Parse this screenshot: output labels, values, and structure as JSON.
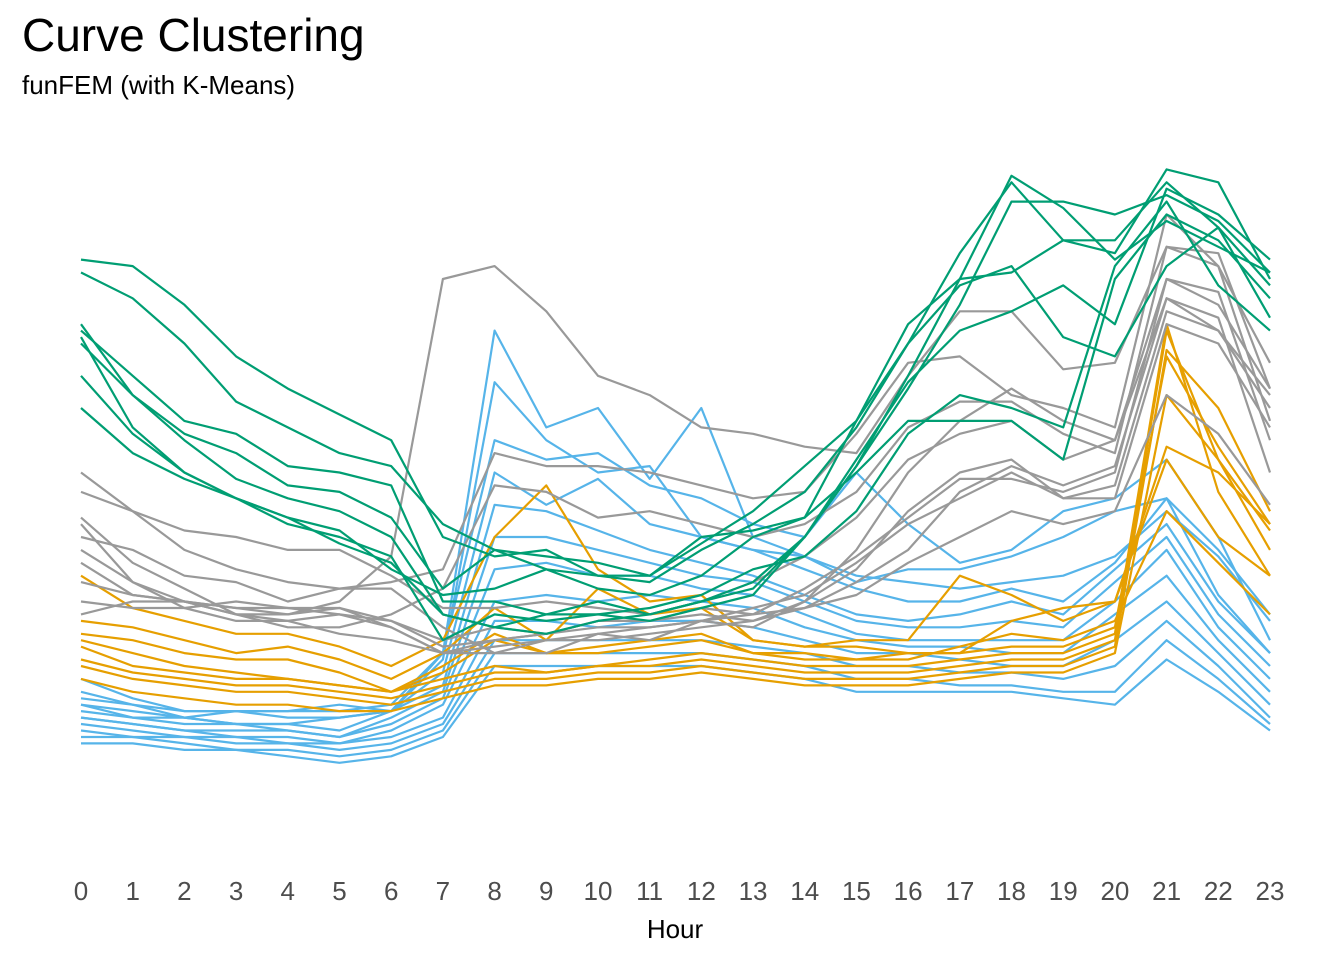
{
  "title": "Curve Clustering",
  "subtitle": "funFEM (with K-Means)",
  "chart_data": {
    "type": "line",
    "title": "Curve Clustering",
    "subtitle": "funFEM (with K-Means)",
    "xlabel": "Hour",
    "ylabel": "",
    "x": [
      0,
      1,
      2,
      3,
      4,
      5,
      6,
      7,
      8,
      9,
      10,
      11,
      12,
      13,
      14,
      15,
      16,
      17,
      18,
      19,
      20,
      21,
      22,
      23
    ],
    "ylim": [
      0,
      100
    ],
    "y_axis_shown": false,
    "grid": false,
    "legend": "none",
    "cluster_colors": {
      "A": "#009E73",
      "B": "#999999",
      "C": "#E69F00",
      "D": "#56B4E9"
    },
    "series": [
      {
        "cluster": "A",
        "values": [
          83,
          82,
          76,
          68,
          63,
          59,
          55,
          40,
          37,
          38,
          34,
          33,
          38,
          42,
          47,
          57,
          70,
          84,
          95,
          86,
          84,
          97,
          95,
          80
        ]
      },
      {
        "cluster": "A",
        "values": [
          81,
          77,
          70,
          61,
          57,
          53,
          51,
          42,
          38,
          37,
          36,
          34,
          39,
          44,
          51,
          58,
          73,
          80,
          81,
          86,
          86,
          95,
          88,
          79
        ]
      },
      {
        "cluster": "A",
        "values": [
          72,
          65,
          58,
          56,
          51,
          50,
          48,
          30,
          30,
          28,
          28,
          29,
          31,
          35,
          37,
          44,
          56,
          62,
          60,
          57,
          82,
          92,
          79,
          72
        ]
      },
      {
        "cluster": "A",
        "values": [
          70,
          62,
          56,
          53,
          48,
          47,
          43,
          32,
          38,
          35,
          32,
          31,
          34,
          40,
          43,
          50,
          58,
          58,
          58,
          52,
          80,
          90,
          86,
          77
        ]
      },
      {
        "cluster": "A",
        "values": [
          73,
          62,
          55,
          49,
          46,
          44,
          40,
          28,
          26,
          25,
          27,
          28,
          30,
          32,
          40,
          52,
          64,
          72,
          75,
          79,
          73,
          94,
          90,
          83
        ]
      },
      {
        "cluster": "A",
        "values": [
          65,
          56,
          50,
          46,
          43,
          39,
          36,
          28,
          26,
          28,
          30,
          28,
          30,
          33,
          40,
          51,
          63,
          76,
          92,
          92,
          90,
          93,
          89,
          81
        ]
      },
      {
        "cluster": "A",
        "values": [
          71,
          57,
          50,
          46,
          42,
          40,
          37,
          24,
          28,
          27,
          28,
          27,
          29,
          31,
          40,
          51,
          65,
          80,
          96,
          91,
          83,
          89,
          85,
          81
        ]
      },
      {
        "cluster": "A",
        "values": [
          60,
          53,
          49,
          46,
          43,
          41,
          35,
          31,
          32,
          35,
          34,
          34,
          40,
          41,
          43,
          58,
          70,
          79,
          82,
          71,
          68,
          82,
          88,
          74
        ]
      },
      {
        "cluster": "B",
        "values": [
          28,
          30,
          30,
          29,
          28,
          30,
          37,
          80,
          82,
          75,
          65,
          62,
          57,
          56,
          54,
          53,
          65,
          75,
          75,
          66,
          67,
          85,
          82,
          67
        ]
      },
      {
        "cluster": "B",
        "values": [
          50,
          44,
          38,
          35,
          33,
          32,
          33,
          35,
          53,
          51,
          51,
          50,
          48,
          46,
          47,
          56,
          67,
          68,
          62,
          60,
          57,
          90,
          82,
          58
        ]
      },
      {
        "cluster": "B",
        "values": [
          43,
          36,
          32,
          28,
          26,
          26,
          28,
          32,
          48,
          47,
          43,
          44,
          42,
          40,
          42,
          47,
          57,
          61,
          61,
          56,
          53,
          85,
          84,
          63
        ]
      },
      {
        "cluster": "B",
        "values": [
          47,
          44,
          41,
          40,
          38,
          38,
          34,
          29,
          29,
          30,
          29,
          28,
          30,
          33,
          37,
          43,
          52,
          56,
          58,
          52,
          55,
          80,
          78,
          55
        ]
      },
      {
        "cluster": "B",
        "values": [
          42,
          33,
          29,
          27,
          27,
          25,
          24,
          22,
          22,
          24,
          24,
          25,
          26,
          27,
          29,
          33,
          38,
          47,
          51,
          48,
          51,
          77,
          74,
          50
        ]
      },
      {
        "cluster": "B",
        "values": [
          40,
          38,
          34,
          33,
          30,
          32,
          32,
          26,
          22,
          22,
          25,
          24,
          27,
          26,
          30,
          38,
          50,
          58,
          63,
          58,
          55,
          77,
          72,
          60
        ]
      },
      {
        "cluster": "B",
        "values": [
          38,
          33,
          30,
          28,
          28,
          29,
          27,
          23,
          24,
          25,
          27,
          27,
          29,
          28,
          32,
          37,
          43,
          49,
          49,
          47,
          50,
          80,
          76,
          63
        ]
      },
      {
        "cluster": "B",
        "values": [
          36,
          31,
          30,
          28,
          27,
          28,
          27,
          24,
          26,
          25,
          27,
          27,
          28,
          27,
          30,
          35,
          44,
          50,
          52,
          46,
          48,
          75,
          72,
          62
        ]
      },
      {
        "cluster": "B",
        "values": [
          33,
          31,
          30,
          29,
          29,
          28,
          26,
          22,
          24,
          25,
          26,
          26,
          27,
          29,
          31,
          36,
          42,
          46,
          50,
          46,
          46,
          73,
          70,
          57
        ]
      },
      {
        "cluster": "B",
        "values": [
          30,
          29,
          29,
          30,
          29,
          29,
          26,
          22,
          23,
          24,
          25,
          26,
          27,
          28,
          29,
          31,
          36,
          40,
          44,
          42,
          44,
          62,
          56,
          45
        ]
      },
      {
        "cluster": "C",
        "values": [
          34,
          29,
          27,
          25,
          25,
          23,
          20,
          24,
          40,
          48,
          35,
          30,
          31,
          24,
          23,
          23,
          22,
          22,
          27,
          29,
          30,
          54,
          50,
          42
        ]
      },
      {
        "cluster": "C",
        "values": [
          27,
          26,
          24,
          22,
          23,
          21,
          18,
          22,
          29,
          24,
          32,
          28,
          29,
          24,
          23,
          24,
          24,
          34,
          31,
          27,
          30,
          52,
          40,
          34
        ]
      },
      {
        "cluster": "C",
        "values": [
          25,
          24,
          22,
          21,
          21,
          19,
          16,
          20,
          25,
          22,
          23,
          24,
          25,
          22,
          22,
          21,
          21,
          23,
          25,
          24,
          27,
          44,
          36,
          28
        ]
      },
      {
        "cluster": "C",
        "values": [
          24,
          22,
          20,
          19,
          18,
          17,
          16,
          19,
          24,
          22,
          22,
          23,
          24,
          22,
          21,
          21,
          22,
          22,
          23,
          23,
          26,
          68,
          54,
          42
        ]
      },
      {
        "cluster": "C",
        "values": [
          23,
          20,
          19,
          18,
          18,
          17,
          16,
          18,
          20,
          19,
          20,
          21,
          22,
          21,
          20,
          20,
          20,
          21,
          22,
          22,
          25,
          73,
          47,
          34
        ]
      },
      {
        "cluster": "C",
        "values": [
          21,
          19,
          18,
          17,
          17,
          16,
          15,
          17,
          19,
          19,
          20,
          20,
          21,
          20,
          19,
          19,
          19,
          20,
          21,
          21,
          24,
          72,
          52,
          38
        ]
      },
      {
        "cluster": "C",
        "values": [
          20,
          18,
          17,
          16,
          16,
          15,
          14,
          16,
          18,
          18,
          19,
          19,
          20,
          19,
          18,
          18,
          18,
          19,
          20,
          20,
          23,
          69,
          60,
          44
        ]
      },
      {
        "cluster": "C",
        "values": [
          18,
          16,
          15,
          14,
          14,
          13,
          13,
          15,
          17,
          17,
          18,
          18,
          19,
          18,
          17,
          17,
          17,
          18,
          19,
          19,
          22,
          62,
          52,
          41
        ]
      },
      {
        "cluster": "D",
        "values": [
          18,
          15,
          13,
          13,
          13,
          13,
          14,
          22,
          72,
          57,
          60,
          49,
          60,
          40,
          37,
          33,
          35,
          35,
          37,
          40,
          44,
          46,
          38,
          28
        ]
      },
      {
        "cluster": "D",
        "values": [
          16,
          14,
          12,
          13,
          12,
          12,
          13,
          21,
          64,
          55,
          50,
          51,
          40,
          38,
          37,
          34,
          33,
          32,
          33,
          34,
          37,
          44,
          37,
          27
        ]
      },
      {
        "cluster": "D",
        "values": [
          15,
          14,
          13,
          13,
          13,
          14,
          13,
          22,
          55,
          52,
          53,
          48,
          46,
          42,
          40,
          50,
          42,
          36,
          38,
          44,
          46,
          52,
          40,
          24
        ]
      },
      {
        "cluster": "D",
        "values": [
          14,
          13,
          12,
          11,
          11,
          12,
          13,
          19,
          50,
          45,
          49,
          42,
          40,
          38,
          35,
          32,
          30,
          30,
          32,
          30,
          36,
          46,
          31,
          22
        ]
      },
      {
        "cluster": "D",
        "values": [
          14,
          12,
          12,
          11,
          11,
          10,
          13,
          17,
          45,
          44,
          41,
          38,
          36,
          34,
          31,
          28,
          27,
          28,
          30,
          28,
          35,
          42,
          30,
          22
        ]
      },
      {
        "cluster": "D",
        "values": [
          13,
          12,
          11,
          11,
          10,
          9,
          12,
          16,
          40,
          40,
          38,
          36,
          34,
          33,
          30,
          27,
          26,
          26,
          27,
          26,
          33,
          40,
          28,
          20
        ]
      },
      {
        "cluster": "D",
        "values": [
          12,
          11,
          10,
          10,
          10,
          9,
          11,
          15,
          35,
          36,
          34,
          34,
          32,
          31,
          28,
          25,
          24,
          24,
          24,
          24,
          30,
          38,
          26,
          18
        ]
      },
      {
        "cluster": "D",
        "values": [
          12,
          11,
          10,
          9,
          9,
          8,
          10,
          14,
          30,
          31,
          30,
          31,
          30,
          29,
          26,
          24,
          23,
          23,
          22,
          22,
          28,
          34,
          24,
          16
        ]
      },
      {
        "cluster": "D",
        "values": [
          11,
          10,
          9,
          9,
          8,
          8,
          9,
          12,
          27,
          27,
          26,
          27,
          27,
          26,
          24,
          22,
          22,
          21,
          20,
          20,
          24,
          30,
          22,
          14
        ]
      },
      {
        "cluster": "D",
        "values": [
          10,
          9,
          9,
          8,
          8,
          7,
          8,
          11,
          24,
          24,
          24,
          24,
          24,
          23,
          22,
          20,
          20,
          19,
          19,
          18,
          20,
          27,
          20,
          12
        ]
      },
      {
        "cluster": "D",
        "values": [
          9,
          9,
          8,
          7,
          7,
          6,
          7,
          10,
          22,
          22,
          22,
          22,
          22,
          21,
          20,
          18,
          18,
          17,
          17,
          16,
          16,
          24,
          18,
          11
        ]
      },
      {
        "cluster": "D",
        "values": [
          8,
          8,
          7,
          7,
          6,
          5,
          6,
          9,
          20,
          20,
          20,
          20,
          20,
          19,
          18,
          16,
          16,
          16,
          16,
          15,
          14,
          21,
          16,
          10
        ]
      }
    ]
  }
}
